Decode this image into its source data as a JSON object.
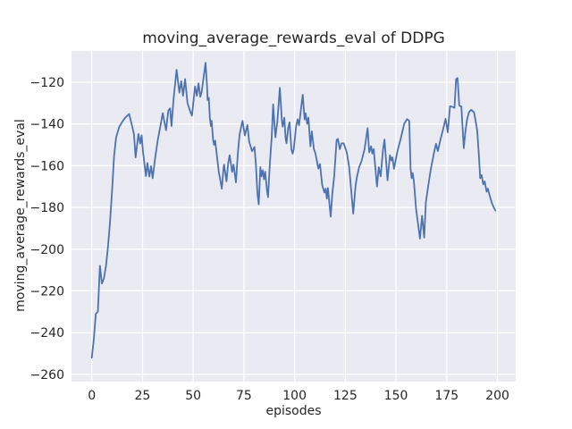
{
  "chart_data": {
    "type": "line",
    "title": "moving_average_rewards_eval of DDPG",
    "xlabel": "episodes",
    "ylabel": "moving_average_rewards_eval",
    "xlim": [
      -10,
      209
    ],
    "ylim": [
      -263.5,
      -105
    ],
    "grid": true,
    "legend": null,
    "axes_bg": "#eaeaf2",
    "grid_color": "#ffffff",
    "line_color": "#4c72b0",
    "line_width": 1.8,
    "text_color": "#262626",
    "x_ticks": [
      0,
      25,
      50,
      75,
      100,
      125,
      150,
      175,
      200
    ],
    "x_tick_labels": [
      "0",
      "25",
      "50",
      "75",
      "100",
      "125",
      "150",
      "175",
      "200"
    ],
    "y_ticks": [
      -260,
      -240,
      -220,
      -200,
      -180,
      -160,
      -140,
      -120
    ],
    "y_tick_labels": [
      "−260",
      "−240",
      "−220",
      "−200",
      "−180",
      "−160",
      "−140",
      "−120"
    ],
    "series": [
      {
        "name": "moving_average_rewards_eval",
        "points": [
          [
            0,
            -252
          ],
          [
            1,
            -243
          ],
          [
            2,
            -231
          ],
          [
            3,
            -230
          ],
          [
            4,
            -208
          ],
          [
            5,
            -216.5
          ],
          [
            6,
            -214
          ],
          [
            7,
            -208
          ],
          [
            8,
            -199
          ],
          [
            9,
            -187
          ],
          [
            10,
            -172
          ],
          [
            11,
            -155
          ],
          [
            12,
            -146.5
          ],
          [
            13.5,
            -141.5
          ],
          [
            15,
            -139
          ],
          [
            16.5,
            -137
          ],
          [
            18.4,
            -135.2
          ],
          [
            20,
            -141.5
          ],
          [
            20.8,
            -145
          ],
          [
            21.6,
            -156
          ],
          [
            23,
            -144.8
          ],
          [
            23.9,
            -149.4
          ],
          [
            24.6,
            -145.4
          ],
          [
            25.2,
            -153
          ],
          [
            26.7,
            -165
          ],
          [
            27.4,
            -158.7
          ],
          [
            28.4,
            -165.2
          ],
          [
            29.2,
            -160.2
          ],
          [
            30,
            -166
          ],
          [
            31.1,
            -157.3
          ],
          [
            32.5,
            -148
          ],
          [
            34,
            -140
          ],
          [
            35,
            -134.8
          ],
          [
            36,
            -140
          ],
          [
            36.6,
            -143
          ],
          [
            37.7,
            -133.6
          ],
          [
            38.6,
            -132.5
          ],
          [
            39.3,
            -141
          ],
          [
            40.3,
            -128
          ],
          [
            41.8,
            -114
          ],
          [
            43.2,
            -125
          ],
          [
            44.1,
            -119.5
          ],
          [
            45,
            -126.5
          ],
          [
            46,
            -118.5
          ],
          [
            47.2,
            -130
          ],
          [
            48.7,
            -134.5
          ],
          [
            49.4,
            -136
          ],
          [
            50.9,
            -122
          ],
          [
            51.8,
            -126.5
          ],
          [
            52.6,
            -120.5
          ],
          [
            53.5,
            -127
          ],
          [
            54.2,
            -124.5
          ],
          [
            56.1,
            -110.7
          ],
          [
            56.8,
            -121.5
          ],
          [
            57.1,
            -128.5
          ],
          [
            57.7,
            -127.5
          ],
          [
            58.2,
            -137
          ],
          [
            58.7,
            -141
          ],
          [
            59.1,
            -138.5
          ],
          [
            59.8,
            -147.5
          ],
          [
            60.3,
            -150
          ],
          [
            60.8,
            -148
          ],
          [
            61.6,
            -154.5
          ],
          [
            62.6,
            -163
          ],
          [
            64.1,
            -171
          ],
          [
            64.9,
            -161.5
          ],
          [
            65.2,
            -159.5
          ],
          [
            66.4,
            -167.5
          ],
          [
            67.3,
            -158.5
          ],
          [
            68,
            -155
          ],
          [
            69.2,
            -163
          ],
          [
            69.9,
            -159.5
          ],
          [
            71.1,
            -168
          ],
          [
            72.1,
            -153
          ],
          [
            72.9,
            -145
          ],
          [
            74.3,
            -138.5
          ],
          [
            75.5,
            -145.5
          ],
          [
            76.7,
            -140.5
          ],
          [
            77.6,
            -148.5
          ],
          [
            79,
            -153
          ],
          [
            80.2,
            -151
          ],
          [
            80.9,
            -159.3
          ],
          [
            81.7,
            -173.7
          ],
          [
            82.3,
            -178.5
          ],
          [
            83.1,
            -160.7
          ],
          [
            83.7,
            -165.1
          ],
          [
            84.3,
            -162.2
          ],
          [
            84.9,
            -166.5
          ],
          [
            85.5,
            -162.9
          ],
          [
            86.4,
            -172.2
          ],
          [
            86.9,
            -175.1
          ],
          [
            87.8,
            -159.3
          ],
          [
            88.7,
            -146.4
          ],
          [
            89.4,
            -130.6
          ],
          [
            90.5,
            -146.4
          ],
          [
            91.5,
            -139
          ],
          [
            92.7,
            -122.7
          ],
          [
            93.7,
            -137.8
          ],
          [
            94.1,
            -141.3
          ],
          [
            94.9,
            -137
          ],
          [
            95.6,
            -147.1
          ],
          [
            96,
            -149.3
          ],
          [
            96.8,
            -142
          ],
          [
            97.5,
            -139.2
          ],
          [
            98.4,
            -152.1
          ],
          [
            99,
            -154.2
          ],
          [
            99.6,
            -152.1
          ],
          [
            100.7,
            -141.3
          ],
          [
            101.5,
            -137.8
          ],
          [
            102.2,
            -140.6
          ],
          [
            104,
            -126
          ],
          [
            104.9,
            -137.8
          ],
          [
            105.4,
            -134.9
          ],
          [
            106.2,
            -139.9
          ],
          [
            106.8,
            -137
          ],
          [
            107.8,
            -150.7
          ],
          [
            108.5,
            -143.5
          ],
          [
            109.5,
            -152.1
          ],
          [
            110.3,
            -154.2
          ],
          [
            111,
            -157.8
          ],
          [
            111.7,
            -161.4
          ],
          [
            112.5,
            -159.2
          ],
          [
            113.6,
            -169.3
          ],
          [
            114.7,
            -172.9
          ],
          [
            115.3,
            -171
          ],
          [
            115.9,
            -175.8
          ],
          [
            116.4,
            -170.7
          ],
          [
            117.8,
            -184.4
          ],
          [
            118.6,
            -173.6
          ],
          [
            119.5,
            -165.1
          ],
          [
            120.7,
            -147.8
          ],
          [
            121.3,
            -147.1
          ],
          [
            122.3,
            -152.1
          ],
          [
            123.1,
            -149.3
          ],
          [
            124.2,
            -149.3
          ],
          [
            125.7,
            -153.6
          ],
          [
            126.9,
            -160.7
          ],
          [
            128.9,
            -183
          ],
          [
            130.1,
            -169.3
          ],
          [
            130.8,
            -165.1
          ],
          [
            131.8,
            -160.7
          ],
          [
            133,
            -157.8
          ],
          [
            134.5,
            -152.1
          ],
          [
            136,
            -142
          ],
          [
            136.8,
            -153.6
          ],
          [
            137.7,
            -150.7
          ],
          [
            138.3,
            -154.2
          ],
          [
            139,
            -152
          ],
          [
            140.6,
            -170
          ],
          [
            141.5,
            -160.7
          ],
          [
            142.4,
            -165.1
          ],
          [
            143.6,
            -152.1
          ],
          [
            144.3,
            -147.5
          ],
          [
            145.8,
            -167
          ],
          [
            147,
            -155
          ],
          [
            147.8,
            -157.5
          ],
          [
            148.3,
            -156
          ],
          [
            149,
            -161.5
          ],
          [
            150.7,
            -153
          ],
          [
            152.2,
            -147.5
          ],
          [
            154,
            -140
          ],
          [
            155.4,
            -137.7
          ],
          [
            156.5,
            -138.5
          ],
          [
            157.2,
            -161.5
          ],
          [
            157.7,
            -166
          ],
          [
            158.2,
            -163.5
          ],
          [
            158.8,
            -167.5
          ],
          [
            159.9,
            -181
          ],
          [
            161.8,
            -195
          ],
          [
            162.8,
            -184
          ],
          [
            163.9,
            -194.5
          ],
          [
            164.7,
            -177.5
          ],
          [
            165.8,
            -170
          ],
          [
            167.2,
            -161.5
          ],
          [
            168.7,
            -154
          ],
          [
            169.7,
            -149.5
          ],
          [
            170.6,
            -153
          ],
          [
            171.9,
            -147.5
          ],
          [
            173.1,
            -143
          ],
          [
            174.4,
            -137.5
          ],
          [
            175.5,
            -144
          ],
          [
            176.6,
            -131.5
          ],
          [
            178,
            -131.8
          ],
          [
            178.8,
            -132.3
          ],
          [
            179.6,
            -118.6
          ],
          [
            180.3,
            -118
          ],
          [
            181.2,
            -131.2
          ],
          [
            182.2,
            -131.6
          ],
          [
            183.4,
            -151.6
          ],
          [
            184.1,
            -144.4
          ],
          [
            185,
            -138
          ],
          [
            186,
            -134.3
          ],
          [
            187.1,
            -133.2
          ],
          [
            188.5,
            -134.5
          ],
          [
            190,
            -143
          ],
          [
            190.7,
            -153
          ],
          [
            191.5,
            -166
          ],
          [
            192.2,
            -164.5
          ],
          [
            193,
            -169
          ],
          [
            193.7,
            -167.5
          ],
          [
            194.7,
            -172.5
          ],
          [
            195.3,
            -171
          ],
          [
            196.2,
            -174.5
          ],
          [
            197.3,
            -178
          ],
          [
            198.2,
            -180
          ],
          [
            199,
            -181.5
          ]
        ]
      }
    ]
  }
}
